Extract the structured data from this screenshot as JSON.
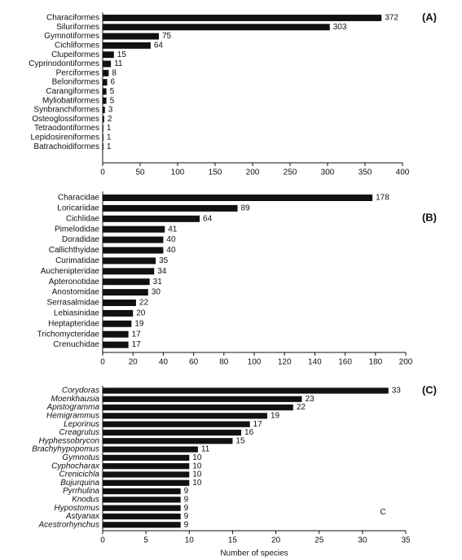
{
  "chart_data": [
    {
      "type": "bar",
      "label": "(A)",
      "color": "#111111",
      "categories": [
        "Characiformes",
        "Siluriformes",
        "Gymnotiformes",
        "Cichliformes",
        "Clupeiformes",
        "Cyprinodontiformes",
        "Perciformes",
        "Beloniformes",
        "Carangiformes",
        "Myliobatiformes",
        "Synbranchiformes",
        "Osteoglossiformes",
        "Tetraodontiformes",
        "Lepidosireniformes",
        "Batrachoidiformes"
      ],
      "values": [
        372,
        303,
        75,
        64,
        15,
        11,
        8,
        6,
        5,
        5,
        3,
        2,
        1,
        1,
        1
      ],
      "xlim": [
        0,
        400
      ],
      "xticks": [
        0,
        50,
        100,
        150,
        200,
        250,
        300,
        350,
        400
      ]
    },
    {
      "type": "bar",
      "label": "(B)",
      "color": "#111111",
      "categories": [
        "Characidae",
        "Loricariidae",
        "Cichlidae",
        "Pimelodidae",
        "Doradidae",
        "Callichthyidae",
        "Curimatidae",
        "Auchenipteridae",
        "Apteronotidae",
        "Anostomidae",
        "Serrasalmidae",
        "Lebiasinidae",
        "Heptapteridae",
        "Trichomycteridae",
        "Crenuchidae"
      ],
      "values": [
        178,
        89,
        64,
        41,
        40,
        40,
        35,
        34,
        31,
        30,
        22,
        20,
        19,
        17,
        17
      ],
      "xlim": [
        0,
        200
      ],
      "xticks": [
        0,
        20,
        40,
        60,
        80,
        100,
        120,
        140,
        160,
        180,
        200
      ]
    },
    {
      "type": "bar",
      "label": "(C)",
      "color": "#111111",
      "italic_categories": true,
      "annotation": "C",
      "xlabel": "Number of species",
      "categories": [
        "Corydoras",
        "Moenkhausia",
        "Apistogramma",
        "Hemigrammus",
        "Leporinus",
        "Creagrutus",
        "Hyphessobrycon",
        "Brachyhypopomus",
        "Gymnotus",
        "Cyphocharax",
        "Crenicichla",
        "Bujurquina",
        "Pyrrhulina",
        "Knodus",
        "Hypostomus",
        "Astyanax",
        "Acestrorhynchus"
      ],
      "values": [
        33,
        23,
        22,
        19,
        17,
        16,
        15,
        11,
        10,
        10,
        10,
        10,
        9,
        9,
        9,
        9,
        9
      ],
      "xlim": [
        0,
        35
      ],
      "xticks": [
        0,
        5,
        10,
        15,
        20,
        25,
        30,
        35
      ]
    }
  ]
}
